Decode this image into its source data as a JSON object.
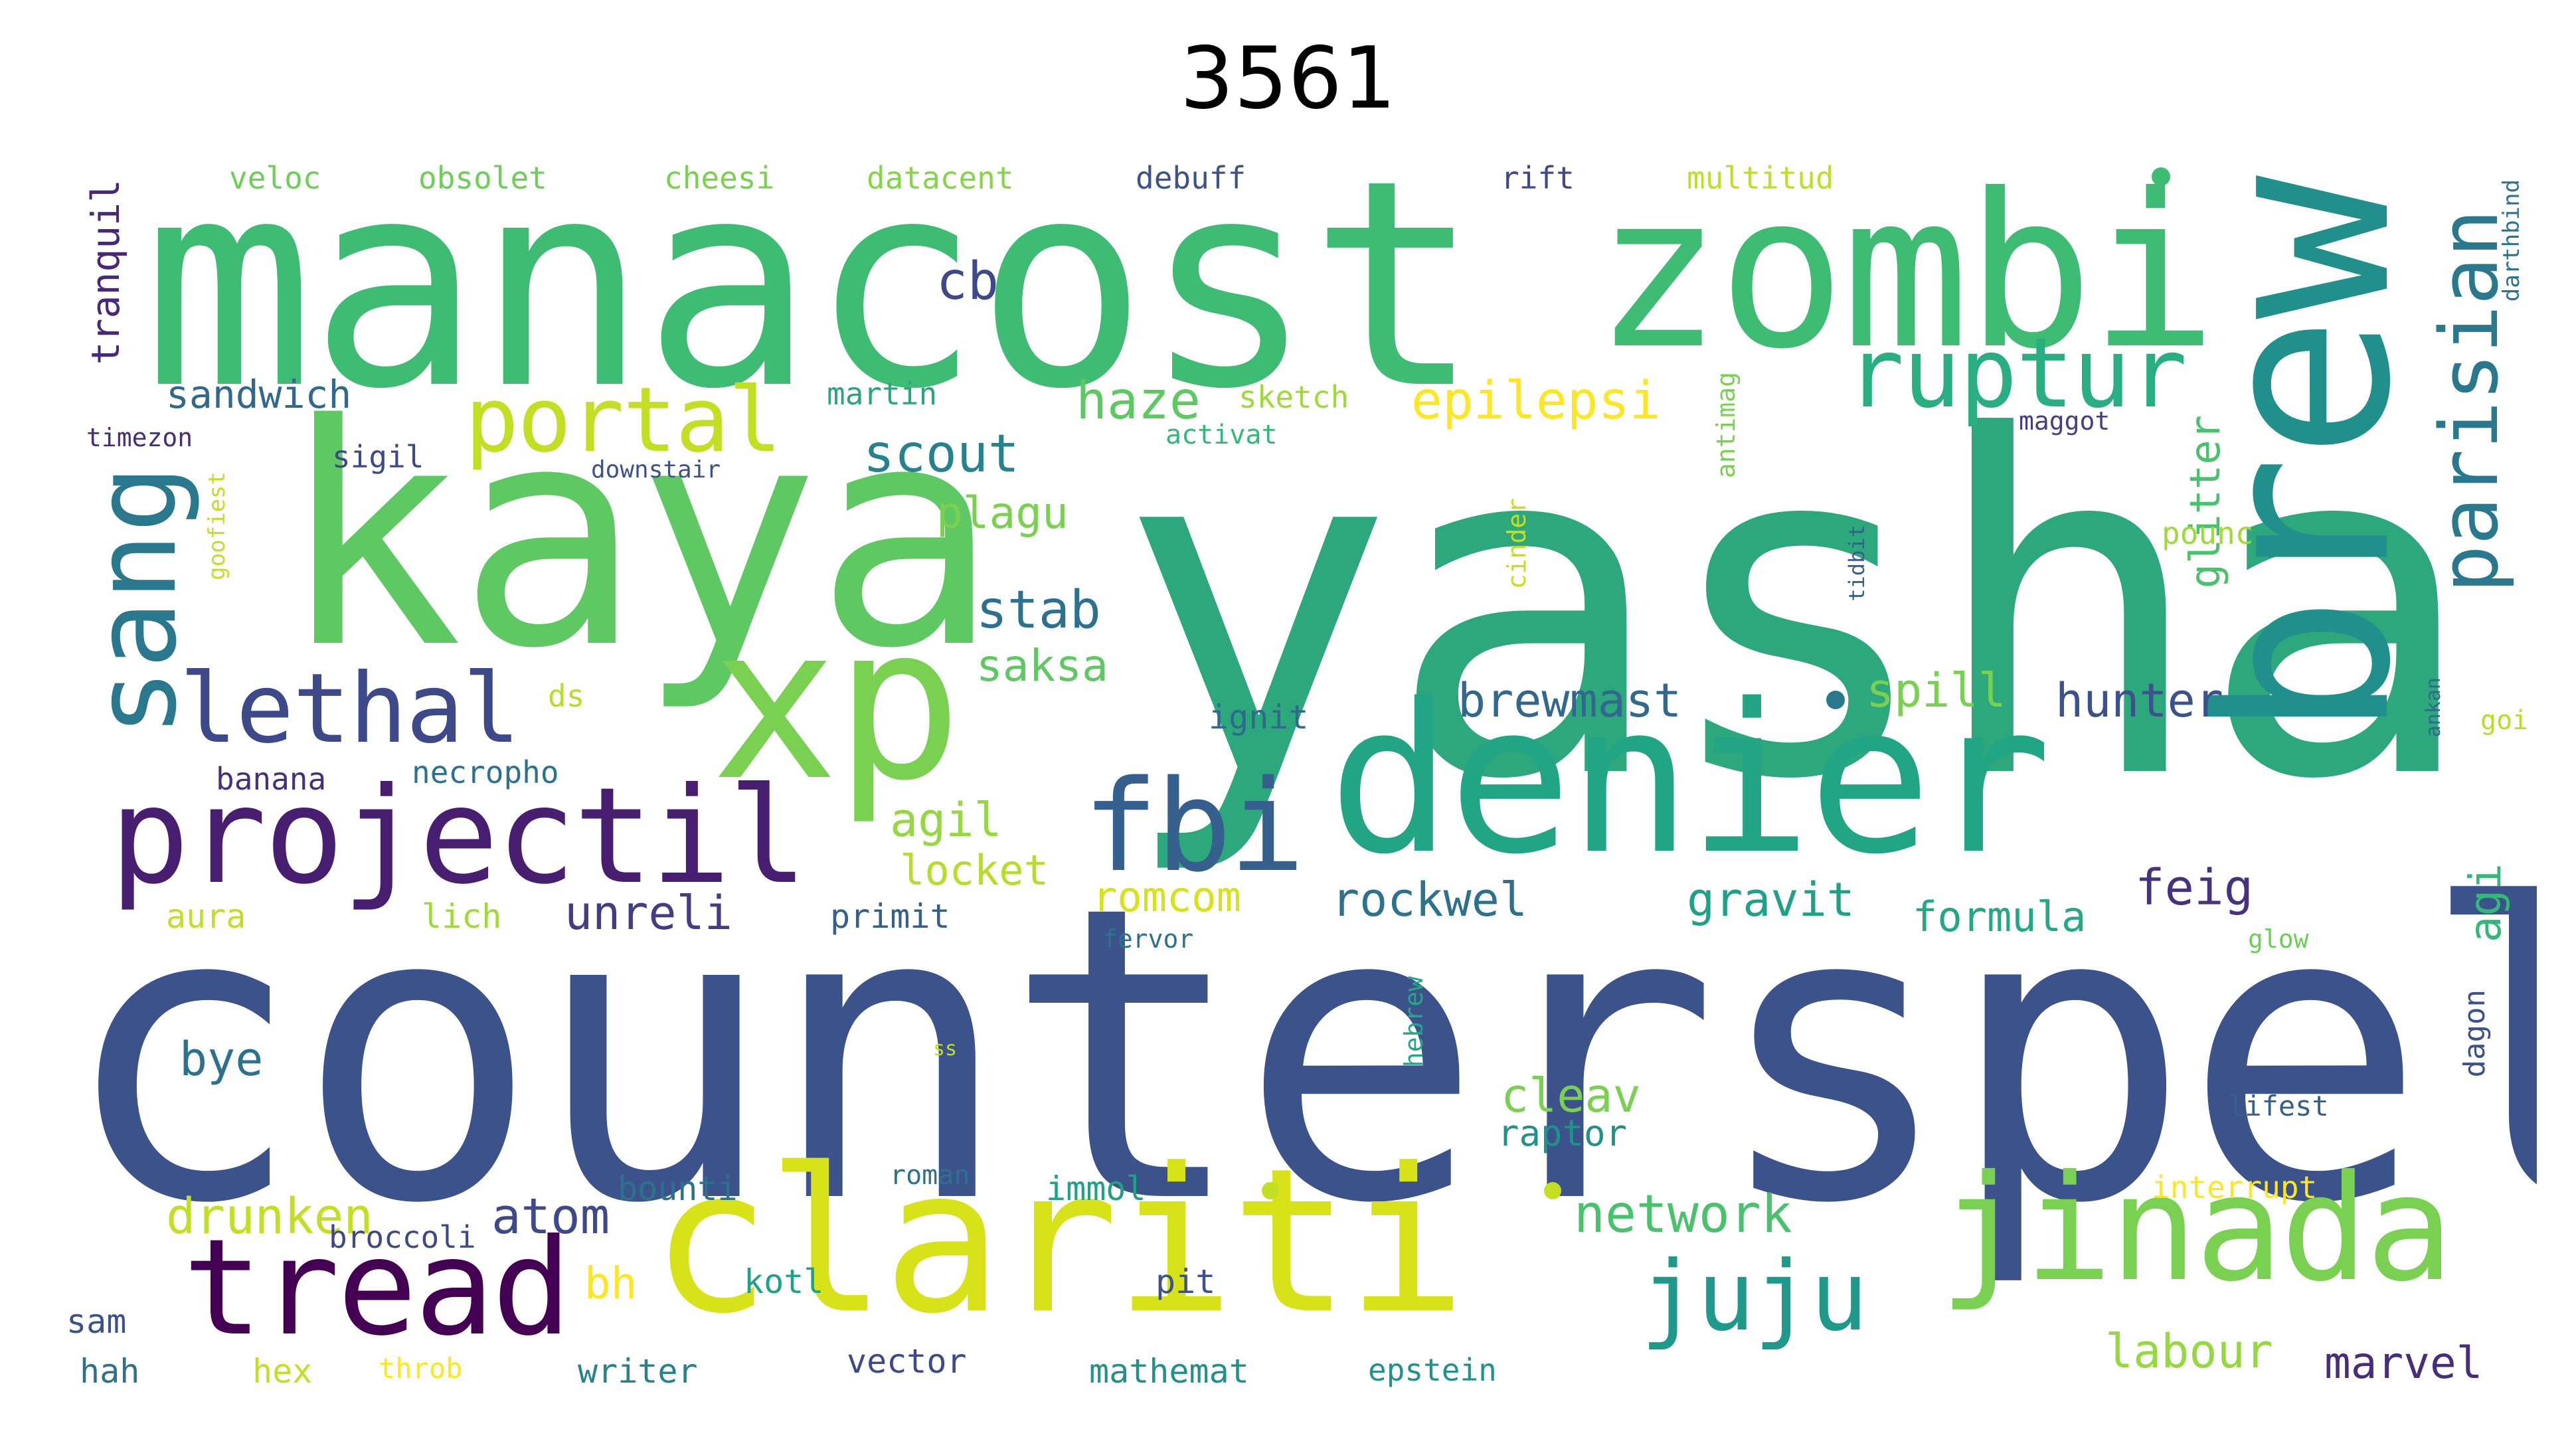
{
  "title": "3561",
  "words": [
    {
      "id": "counterspel",
      "text": "counterspel",
      "color": "#3b528b"
    },
    {
      "id": "yasha",
      "text": "yasha",
      "color": "#2ca87c"
    },
    {
      "id": "manacost",
      "text": "manacost",
      "color": "#3fbc73"
    },
    {
      "id": "kaya",
      "text": "kaya",
      "color": "#5ec962"
    },
    {
      "id": "zombi",
      "text": "zombi",
      "color": "#3fbc73"
    },
    {
      "id": "brew",
      "text": "brew",
      "color": "#21908c"
    },
    {
      "id": "denier",
      "text": "denier",
      "color": "#21a585"
    },
    {
      "id": "clariti",
      "text": "clariti",
      "color": "#d8e219"
    },
    {
      "id": "xp",
      "text": "xp",
      "color": "#7ad151"
    },
    {
      "id": "projectil",
      "text": "projectil",
      "color": "#481f70"
    },
    {
      "id": "jinada",
      "text": "jinada",
      "color": "#7ad151"
    },
    {
      "id": "tread",
      "text": "tread",
      "color": "#440154"
    },
    {
      "id": "fbi",
      "text": "fbi",
      "color": "#355f8d"
    },
    {
      "id": "sang",
      "text": "sang",
      "color": "#2a788e"
    },
    {
      "id": "lethal",
      "text": "lethal",
      "color": "#3e4989"
    },
    {
      "id": "portal",
      "text": "portal",
      "color": "#c2df23"
    },
    {
      "id": "ruptur",
      "text": "ruptur",
      "color": "#28ae80"
    },
    {
      "id": "parisian",
      "text": "parisian",
      "color": "#2a788e"
    },
    {
      "id": "juju",
      "text": "juju",
      "color": "#1f9a8a"
    },
    {
      "id": "epilepsi",
      "text": "epilepsi",
      "color": "#fde725"
    },
    {
      "id": "haze",
      "text": "haze",
      "color": "#5ec962"
    },
    {
      "id": "scout",
      "text": "scout",
      "color": "#26828e"
    },
    {
      "id": "cb",
      "text": "cb",
      "color": "#3e4989"
    },
    {
      "id": "stab",
      "text": "stab",
      "color": "#2c728e"
    },
    {
      "id": "saksa",
      "text": "saksa",
      "color": "#5ec962"
    },
    {
      "id": "plagu",
      "text": "plagu",
      "color": "#7ad151"
    },
    {
      "id": "brewmast",
      "text": "brewmast",
      "color": "#31688e"
    },
    {
      "id": "spill",
      "text": "spill",
      "color": "#7ad151"
    },
    {
      "id": "hunter",
      "text": "hunter",
      "color": "#3b528b"
    },
    {
      "id": "glitter",
      "text": "glitter",
      "color": "#4ac16d"
    },
    {
      "id": "agil",
      "text": "agil",
      "color": "#95d840"
    },
    {
      "id": "locket",
      "text": "locket",
      "color": "#b5de2b"
    },
    {
      "id": "romcom",
      "text": "romcom",
      "color": "#d8e219"
    },
    {
      "id": "rockwel",
      "text": "rockwel",
      "color": "#2c728e"
    },
    {
      "id": "gravit",
      "text": "gravit",
      "color": "#1fa187"
    },
    {
      "id": "feig",
      "text": "feig",
      "color": "#46327e"
    },
    {
      "id": "formula",
      "text": "formula",
      "color": "#22a884"
    },
    {
      "id": "agi",
      "text": "agi",
      "color": "#35b779"
    },
    {
      "id": "unreli",
      "text": "unreli",
      "color": "#433d84"
    },
    {
      "id": "sandwich",
      "text": "sandwich",
      "color": "#31688e"
    },
    {
      "id": "tranquil",
      "text": "tranquil",
      "color": "#482878"
    },
    {
      "id": "martin",
      "text": "martin",
      "color": "#2ea37f"
    },
    {
      "id": "sketch",
      "text": "sketch",
      "color": "#a0da39"
    },
    {
      "id": "activat",
      "text": "activat",
      "color": "#35b779"
    },
    {
      "id": "bye",
      "text": "bye",
      "color": "#2c728e"
    },
    {
      "id": "cleav",
      "text": "cleav",
      "color": "#7ad151"
    },
    {
      "id": "raptor",
      "text": "raptor",
      "color": "#21918c"
    },
    {
      "id": "network",
      "text": "network",
      "color": "#4ac16d"
    },
    {
      "id": "drunken",
      "text": "drunken",
      "color": "#c2df23"
    },
    {
      "id": "atom",
      "text": "atom",
      "color": "#3e4989"
    },
    {
      "id": "bh",
      "text": "bh",
      "color": "#fde725"
    },
    {
      "id": "labour",
      "text": "labour",
      "color": "#95d840"
    },
    {
      "id": "marvel",
      "text": "marvel",
      "color": "#472d7b"
    },
    {
      "id": "veloc",
      "text": "veloc",
      "color": "#6ece58"
    },
    {
      "id": "obsolet",
      "text": "obsolet",
      "color": "#6ece58"
    },
    {
      "id": "cheesi",
      "text": "cheesi",
      "color": "#7ad151"
    },
    {
      "id": "datacent",
      "text": "datacent",
      "color": "#86d549"
    },
    {
      "id": "debuff",
      "text": "debuff",
      "color": "#3b528b"
    },
    {
      "id": "rift",
      "text": "rift",
      "color": "#3e4989"
    },
    {
      "id": "multitud",
      "text": "multitud",
      "color": "#bddf26"
    },
    {
      "id": "darthbind",
      "text": "darthbind",
      "color": "#2c728e"
    },
    {
      "id": "timezon",
      "text": "timezon",
      "color": "#472c7a"
    },
    {
      "id": "sigil",
      "text": "sigil",
      "color": "#3e4989"
    },
    {
      "id": "downstair",
      "text": "downstair",
      "color": "#3b528b"
    },
    {
      "id": "maggot",
      "text": "maggot",
      "color": "#433e85"
    },
    {
      "id": "antimag",
      "text": "antimag",
      "color": "#7ad151"
    },
    {
      "id": "goofiest",
      "text": "goofiest",
      "color": "#c2df23"
    },
    {
      "id": "cinder",
      "text": "cinder",
      "color": "#c2df23"
    },
    {
      "id": "tidbit",
      "text": "tidbit",
      "color": "#355f8d"
    },
    {
      "id": "pounc",
      "text": "pounc",
      "color": "#a0da39"
    },
    {
      "id": "ds",
      "text": "ds",
      "color": "#b5de2b"
    },
    {
      "id": "ignit",
      "text": "ignit",
      "color": "#31688e"
    },
    {
      "id": "banana",
      "text": "banana",
      "color": "#46307e"
    },
    {
      "id": "necropho",
      "text": "necropho",
      "color": "#2c728e"
    },
    {
      "id": "ankan",
      "text": "ankan",
      "color": "#31688e"
    },
    {
      "id": "goi",
      "text": "goi",
      "color": "#b5de2b"
    },
    {
      "id": "aura",
      "text": "aura",
      "color": "#c2df23"
    },
    {
      "id": "lich",
      "text": "lich",
      "color": "#a0da39"
    },
    {
      "id": "primit",
      "text": "primit",
      "color": "#355f8d"
    },
    {
      "id": "fervor",
      "text": "fervor",
      "color": "#2c728e"
    },
    {
      "id": "glow",
      "text": "glow",
      "color": "#6ece58"
    },
    {
      "id": "hebrew",
      "text": "hebrew",
      "color": "#22a884"
    },
    {
      "id": "dagon",
      "text": "dagon",
      "color": "#3b528b"
    },
    {
      "id": "ss",
      "text": "ss",
      "color": "#c2df23"
    },
    {
      "id": "lifest",
      "text": "lifest",
      "color": "#355f8d"
    },
    {
      "id": "roman",
      "text": "roman",
      "color": "#2c728e"
    },
    {
      "id": "bounti",
      "text": "bounti",
      "color": "#2c728e"
    },
    {
      "id": "immol",
      "text": "immol",
      "color": "#1fa187"
    },
    {
      "id": "interrupt",
      "text": "interrupt",
      "color": "#fde725"
    },
    {
      "id": "broccoli",
      "text": "broccoli",
      "color": "#3e4989"
    },
    {
      "id": "kotl",
      "text": "kotl",
      "color": "#1fa187"
    },
    {
      "id": "pit",
      "text": "pit",
      "color": "#3b528b"
    },
    {
      "id": "sam",
      "text": "sam",
      "color": "#3b528b"
    },
    {
      "id": "hah",
      "text": "hah",
      "color": "#2c728e"
    },
    {
      "id": "hex",
      "text": "hex",
      "color": "#c2df23"
    },
    {
      "id": "throb",
      "text": "throb",
      "color": "#fde725"
    },
    {
      "id": "writer",
      "text": "writer",
      "color": "#26828e"
    },
    {
      "id": "vector",
      "text": "vector",
      "color": "#3e4989"
    },
    {
      "id": "mathemat",
      "text": "mathemat",
      "color": "#21918c"
    },
    {
      "id": "epstein",
      "text": "epstein",
      "color": "#21918c"
    }
  ]
}
